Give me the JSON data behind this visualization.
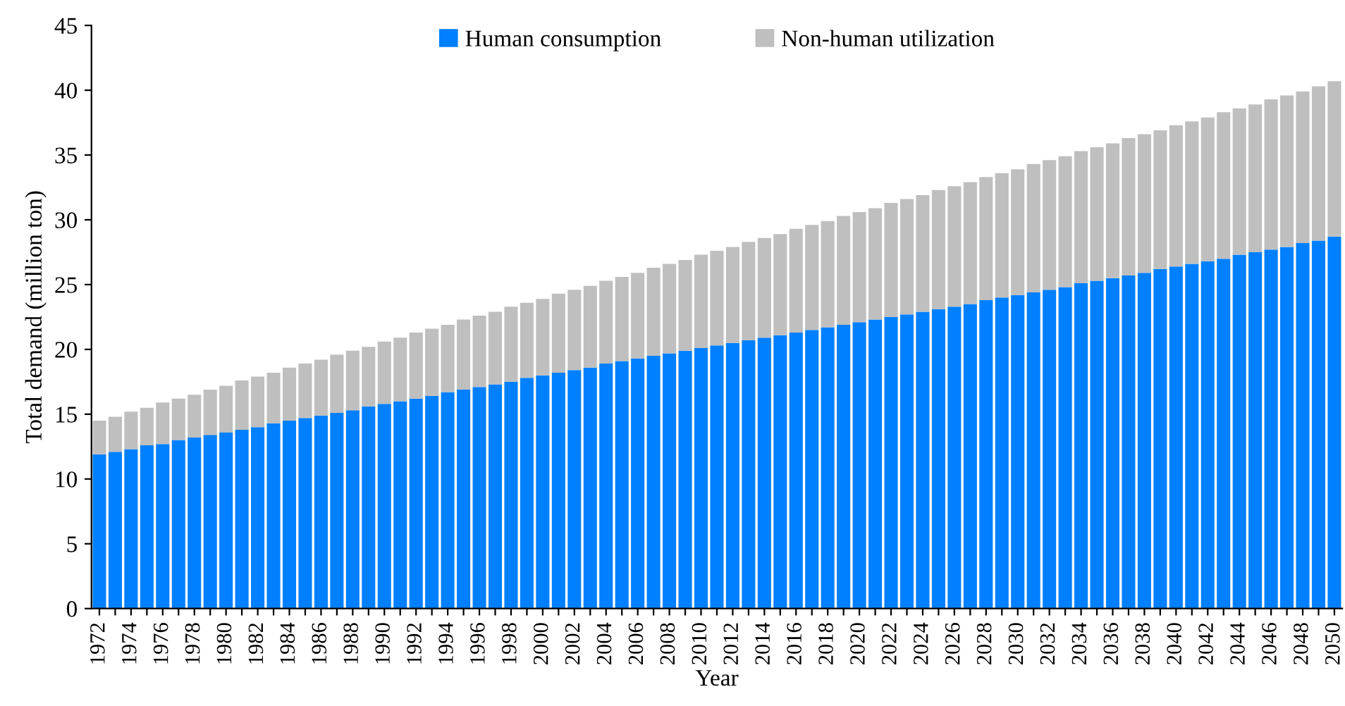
{
  "chart_data": {
    "type": "bar",
    "stacked": true,
    "xlabel": "Year",
    "ylabel": "Total demand (million ton)",
    "categories": [
      "1972",
      null,
      "1974",
      null,
      "1976",
      null,
      "1978",
      null,
      "1980",
      null,
      "1982",
      null,
      "1984",
      null,
      "1986",
      null,
      "1988",
      null,
      "1990",
      null,
      "1992",
      null,
      "1994",
      null,
      "1996",
      null,
      "1998",
      null,
      "2000",
      null,
      "2002",
      null,
      "2004",
      null,
      "2006",
      null,
      "2008",
      null,
      "2010",
      null,
      "2012",
      null,
      "2014",
      null,
      "2016",
      null,
      "2018",
      null,
      "2020",
      null,
      "2022",
      null,
      "2024",
      null,
      "2026",
      null,
      "2028",
      null,
      "2030",
      null,
      "2032",
      null,
      "2034",
      null,
      "2036",
      null,
      "2038",
      null,
      "2040",
      null,
      "2042",
      null,
      "2044",
      null,
      "2046",
      null,
      "2048",
      null,
      "2050"
    ],
    "series": [
      {
        "name": "Human consumption",
        "color": "#0080ff",
        "values": [
          11.9,
          12.1,
          12.3,
          12.6,
          12.7,
          13.0,
          13.2,
          13.4,
          13.6,
          13.8,
          14.0,
          14.3,
          14.5,
          14.7,
          14.9,
          15.1,
          15.3,
          15.6,
          15.8,
          16.0,
          16.2,
          16.4,
          16.7,
          16.9,
          17.1,
          17.3,
          17.5,
          17.8,
          18.0,
          18.2,
          18.4,
          18.6,
          18.9,
          19.1,
          19.3,
          19.5,
          19.7,
          19.9,
          20.1,
          20.3,
          20.5,
          20.7,
          20.9,
          21.1,
          21.3,
          21.5,
          21.7,
          21.9,
          22.1,
          22.3,
          22.5,
          22.7,
          22.9,
          23.1,
          23.3,
          23.5,
          23.8,
          24.0,
          24.2,
          24.4,
          24.6,
          24.8,
          25.1,
          25.3,
          25.5,
          25.7,
          25.9,
          26.2,
          26.4,
          26.6,
          26.8,
          27.0,
          27.3,
          27.5,
          27.7,
          27.9,
          28.2,
          28.4,
          28.7
        ]
      },
      {
        "name": "Non-human utilization",
        "color": "#bfbfbf",
        "values": [
          2.6,
          2.7,
          2.9,
          2.9,
          3.2,
          3.2,
          3.3,
          3.5,
          3.6,
          3.8,
          3.9,
          3.9,
          4.1,
          4.2,
          4.3,
          4.5,
          4.6,
          4.6,
          4.8,
          4.9,
          5.1,
          5.2,
          5.2,
          5.4,
          5.5,
          5.6,
          5.8,
          5.8,
          5.9,
          6.1,
          6.2,
          6.3,
          6.4,
          6.5,
          6.6,
          6.8,
          6.9,
          7.0,
          7.2,
          7.3,
          7.4,
          7.6,
          7.7,
          7.8,
          8.0,
          8.1,
          8.2,
          8.4,
          8.5,
          8.6,
          8.8,
          8.9,
          9.0,
          9.2,
          9.3,
          9.4,
          9.5,
          9.6,
          9.7,
          9.9,
          10.0,
          10.1,
          10.2,
          10.3,
          10.4,
          10.6,
          10.7,
          10.7,
          10.9,
          11.0,
          11.1,
          11.3,
          11.3,
          11.4,
          11.6,
          11.7,
          11.7,
          11.9,
          12.0
        ]
      }
    ],
    "ylim": [
      0,
      45
    ],
    "yticks": [
      0,
      5,
      10,
      15,
      20,
      25,
      30,
      35,
      40,
      45
    ],
    "grid": false,
    "legend": "top"
  }
}
